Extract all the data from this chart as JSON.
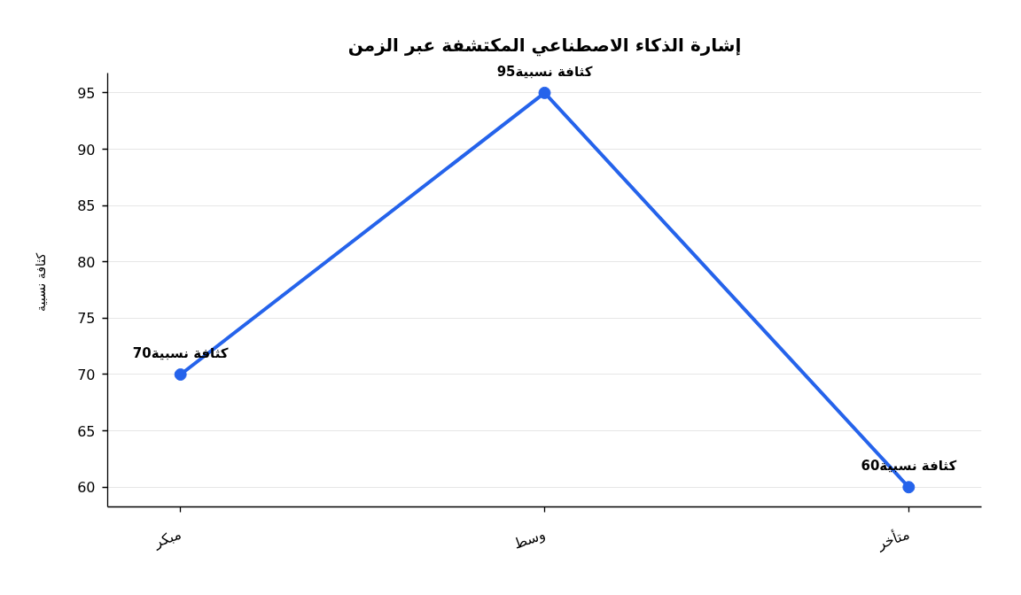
{
  "chart_data": {
    "type": "line",
    "title": "إشارة الذكاء الاصطناعي المكتشفة عبر الزمن",
    "ylabel": "كثافة نسبية",
    "categories": [
      "مبكر",
      "وسط",
      "متأخر"
    ],
    "series": [
      {
        "color": "#2563eb",
        "values": [
          70,
          95,
          60
        ],
        "value_labels": [
          "كثافة نسبية70",
          "كثافة نسبية95",
          "كثافة نسبية60"
        ]
      }
    ],
    "ylim": [
      58.25,
      96.75
    ],
    "yticks": [
      60,
      65,
      70,
      75,
      80,
      85,
      90,
      95
    ],
    "grid": "y",
    "marker": "circle",
    "line_style": "solid"
  }
}
